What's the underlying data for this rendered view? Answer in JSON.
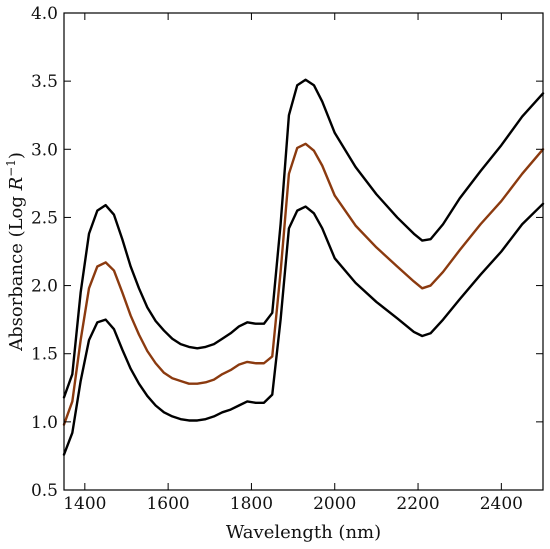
{
  "chart_data": {
    "type": "line",
    "title": "",
    "xlabel": "Wavelength (nm)",
    "ylabel_main": "Absorbance (Log ",
    "ylabel_var": "R",
    "ylabel_exp": "−1",
    "ylabel_close": ")",
    "xlim": [
      1350,
      2500
    ],
    "ylim": [
      0.5,
      4.0
    ],
    "xticks": [
      1400,
      1600,
      1800,
      2000,
      2200,
      2400
    ],
    "xtick_labels": [
      "1400",
      "1600",
      "1800",
      "2000",
      "2200",
      "2400"
    ],
    "yticks": [
      0.5,
      1.0,
      1.5,
      2.0,
      2.5,
      3.0,
      3.5,
      4.0
    ],
    "ytick_labels": [
      "0.5",
      "1.0",
      "1.5",
      "2.0",
      "2.5",
      "3.0",
      "3.5",
      "4.0"
    ],
    "grid": false,
    "x": [
      1350,
      1370,
      1390,
      1410,
      1430,
      1450,
      1470,
      1490,
      1510,
      1530,
      1550,
      1570,
      1590,
      1610,
      1630,
      1650,
      1670,
      1690,
      1710,
      1730,
      1750,
      1770,
      1790,
      1810,
      1830,
      1850,
      1870,
      1890,
      1910,
      1930,
      1950,
      1970,
      2000,
      2050,
      2100,
      2150,
      2190,
      2210,
      2230,
      2260,
      2300,
      2350,
      2400,
      2450,
      2500
    ],
    "series": [
      {
        "color": "#000000",
        "values": [
          1.18,
          1.35,
          1.95,
          2.38,
          2.55,
          2.59,
          2.52,
          2.34,
          2.14,
          1.98,
          1.84,
          1.74,
          1.67,
          1.61,
          1.57,
          1.55,
          1.54,
          1.55,
          1.57,
          1.61,
          1.65,
          1.7,
          1.73,
          1.72,
          1.72,
          1.8,
          2.45,
          3.25,
          3.47,
          3.51,
          3.47,
          3.35,
          3.12,
          2.87,
          2.67,
          2.5,
          2.38,
          2.33,
          2.34,
          2.45,
          2.64,
          2.84,
          3.03,
          3.24,
          3.41
        ]
      },
      {
        "color": "#8b3a0f",
        "values": [
          0.98,
          1.15,
          1.6,
          1.98,
          2.14,
          2.17,
          2.11,
          1.95,
          1.78,
          1.64,
          1.52,
          1.43,
          1.36,
          1.32,
          1.3,
          1.28,
          1.28,
          1.29,
          1.31,
          1.35,
          1.38,
          1.42,
          1.44,
          1.43,
          1.43,
          1.48,
          2.1,
          2.82,
          3.01,
          3.04,
          2.99,
          2.88,
          2.66,
          2.44,
          2.28,
          2.14,
          2.03,
          1.98,
          2.0,
          2.1,
          2.26,
          2.45,
          2.62,
          2.82,
          3.0
        ]
      },
      {
        "color": "#000000",
        "values": [
          0.76,
          0.92,
          1.3,
          1.6,
          1.73,
          1.75,
          1.68,
          1.53,
          1.39,
          1.28,
          1.19,
          1.12,
          1.07,
          1.04,
          1.02,
          1.01,
          1.01,
          1.02,
          1.04,
          1.07,
          1.09,
          1.12,
          1.15,
          1.14,
          1.14,
          1.2,
          1.75,
          2.42,
          2.55,
          2.58,
          2.53,
          2.42,
          2.2,
          2.02,
          1.88,
          1.76,
          1.66,
          1.63,
          1.65,
          1.75,
          1.9,
          2.08,
          2.25,
          2.45,
          2.6
        ]
      }
    ]
  }
}
